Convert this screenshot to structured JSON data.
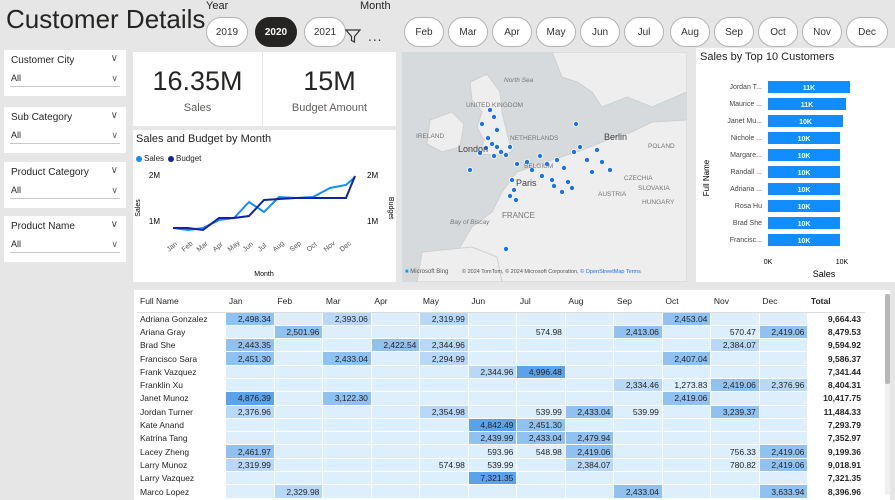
{
  "title": "Customer Details",
  "year_slicer": {
    "label": "Year",
    "options": [
      "2019",
      "2020",
      "2021"
    ],
    "selected": "2020"
  },
  "month_slicer": {
    "label": "Month",
    "options": [
      "Jan",
      "Feb",
      "Mar",
      "Apr",
      "May",
      "Jun",
      "Jul",
      "Aug",
      "Sep",
      "Oct",
      "Nov",
      "Dec"
    ]
  },
  "more_label": "...",
  "slicers": [
    {
      "label": "Customer City",
      "value": "All"
    },
    {
      "label": "Sub Category",
      "value": "All"
    },
    {
      "label": "Product Category",
      "value": "All"
    },
    {
      "label": "Product Name",
      "value": "All"
    }
  ],
  "kpis": {
    "sales": {
      "value": "16.35M",
      "label": "Sales"
    },
    "budget": {
      "value": "15M",
      "label": "Budget Amount"
    }
  },
  "line_chart": {
    "title": "Sales and Budget by Month",
    "legend": [
      "Sales",
      "Budget"
    ],
    "y_left_label": "Sales",
    "y_right_label": "Budget",
    "x_label": "Month",
    "tick_2m": "2M",
    "tick_1m": "1M"
  },
  "map": {
    "labels": {
      "north_sea": "North Sea",
      "uk": "UNITED KINGDOM",
      "ireland": "IRELAND",
      "london": "London",
      "netherlands": "NETHERLANDS",
      "berlin": "Berlin",
      "poland": "POLAND",
      "belgium": "BELGIUM",
      "czechia": "CZECHIA",
      "paris": "Paris",
      "slovakia": "SLOVAKIA",
      "austria": "AUSTRIA",
      "hungary": "HUNGARY",
      "france": "FRANCE",
      "bay": "Bay of Biscay"
    },
    "bing": "Microsoft Bing",
    "attribution": "© 2024 TomTom, © 2024 Microsoft Corporation, ",
    "osm": "© OpenStreetMap",
    "terms": "Terms"
  },
  "bar_chart": {
    "title": "Sales by Top 10 Customers",
    "y_label": "Full Name",
    "x_label": "Sales",
    "x_ticks": [
      "0K",
      "10K"
    ],
    "items": [
      {
        "name": "Jordan T...",
        "label": "11K"
      },
      {
        "name": "Maurice ...",
        "label": "11K"
      },
      {
        "name": "Janet Mu...",
        "label": "10K"
      },
      {
        "name": "Nichole ...",
        "label": "10K"
      },
      {
        "name": "Margare...",
        "label": "10K"
      },
      {
        "name": "Randall ...",
        "label": "10K"
      },
      {
        "name": "Adriana ...",
        "label": "10K"
      },
      {
        "name": "Rosa Hu",
        "label": "10K"
      },
      {
        "name": "Brad She",
        "label": "10K"
      },
      {
        "name": "Francisc...",
        "label": "10K"
      }
    ]
  },
  "matrix": {
    "headers": [
      "Full Name",
      "Jan",
      "Feb",
      "Mar",
      "Apr",
      "May",
      "Jun",
      "Jul",
      "Aug",
      "Sep",
      "Oct",
      "Nov",
      "Dec",
      "Total"
    ],
    "rows": [
      [
        "Adriana Gonzalez",
        "2,498.34",
        "",
        "2,393.06",
        "",
        "2,319.99",
        "",
        "",
        "",
        "",
        "2,453.04",
        "",
        "",
        "9,664.43"
      ],
      [
        "Ariana Gray",
        "",
        "2,501.96",
        "",
        "",
        "",
        "",
        "574.98",
        "",
        "2,413.06",
        "",
        "570.47",
        "2,419.06",
        "8,479.53"
      ],
      [
        "Brad She",
        "2,443.35",
        "",
        "",
        "2,422.54",
        "2,344.96",
        "",
        "",
        "",
        "",
        "",
        "2,384.07",
        "",
        "9,594.92"
      ],
      [
        "Francisco Sara",
        "2,451.30",
        "",
        "2,433.04",
        "",
        "2,294.99",
        "",
        "",
        "",
        "",
        "2,407.04",
        "",
        "",
        "9,586.37"
      ],
      [
        "Frank Vazquez",
        "",
        "",
        "",
        "",
        "",
        "2,344.96",
        "4,996.48",
        "",
        "",
        "",
        "",
        "",
        "7,341.44"
      ],
      [
        "Franklin Xu",
        "",
        "",
        "",
        "",
        "",
        "",
        "",
        "",
        "2,334.46",
        "1,273.83",
        "2,419.06",
        "2,376.96",
        "8,404.31"
      ],
      [
        "Janet Munoz",
        "4,876.39",
        "",
        "3,122.30",
        "",
        "",
        "",
        "",
        "",
        "",
        "2,419.06",
        "",
        "",
        "10,417.75"
      ],
      [
        "Jordan Turner",
        "2,376.96",
        "",
        "",
        "",
        "2,354.98",
        "",
        "539.99",
        "2,433.04",
        "539.99",
        "",
        "3,239.37",
        "",
        "11,484.33"
      ],
      [
        "Kate Anand",
        "",
        "",
        "",
        "",
        "",
        "4,842.49",
        "2,451.30",
        "",
        "",
        "",
        "",
        "",
        "7,293.79"
      ],
      [
        "Katrina Tang",
        "",
        "",
        "",
        "",
        "",
        "2,439.99",
        "2,433.04",
        "2,479.94",
        "",
        "",
        "",
        "",
        "7,352.97"
      ],
      [
        "Lacey Zheng",
        "2,461.97",
        "",
        "",
        "",
        "",
        "593.96",
        "548.98",
        "2,419.06",
        "",
        "",
        "756.33",
        "2,419.06",
        "9,199.36"
      ],
      [
        "Larry Munoz",
        "2,319.99",
        "",
        "",
        "",
        "574.98",
        "539.99",
        "",
        "2,384.07",
        "",
        "",
        "780.82",
        "2,419.06",
        "9,018.91"
      ],
      [
        "Larry Vazquez",
        "",
        "",
        "",
        "",
        "",
        "7,321.35",
        "",
        "",
        "",
        "",
        "",
        "",
        "7,321.35"
      ],
      [
        "Marco Lopez",
        "",
        "2,329.98",
        "",
        "",
        "",
        "",
        "",
        "",
        "2,433.04",
        "",
        "",
        "3,633.94",
        "8,396.96"
      ]
    ]
  },
  "colors": {
    "accent": "#118dff",
    "budget": "#12239e",
    "bar": "#118dff",
    "cell_base": "#ddeefc",
    "cell_light": "#b9d8f7",
    "cell_mid": "#8fc1f1",
    "cell_dark": "#5aa3ea"
  }
}
